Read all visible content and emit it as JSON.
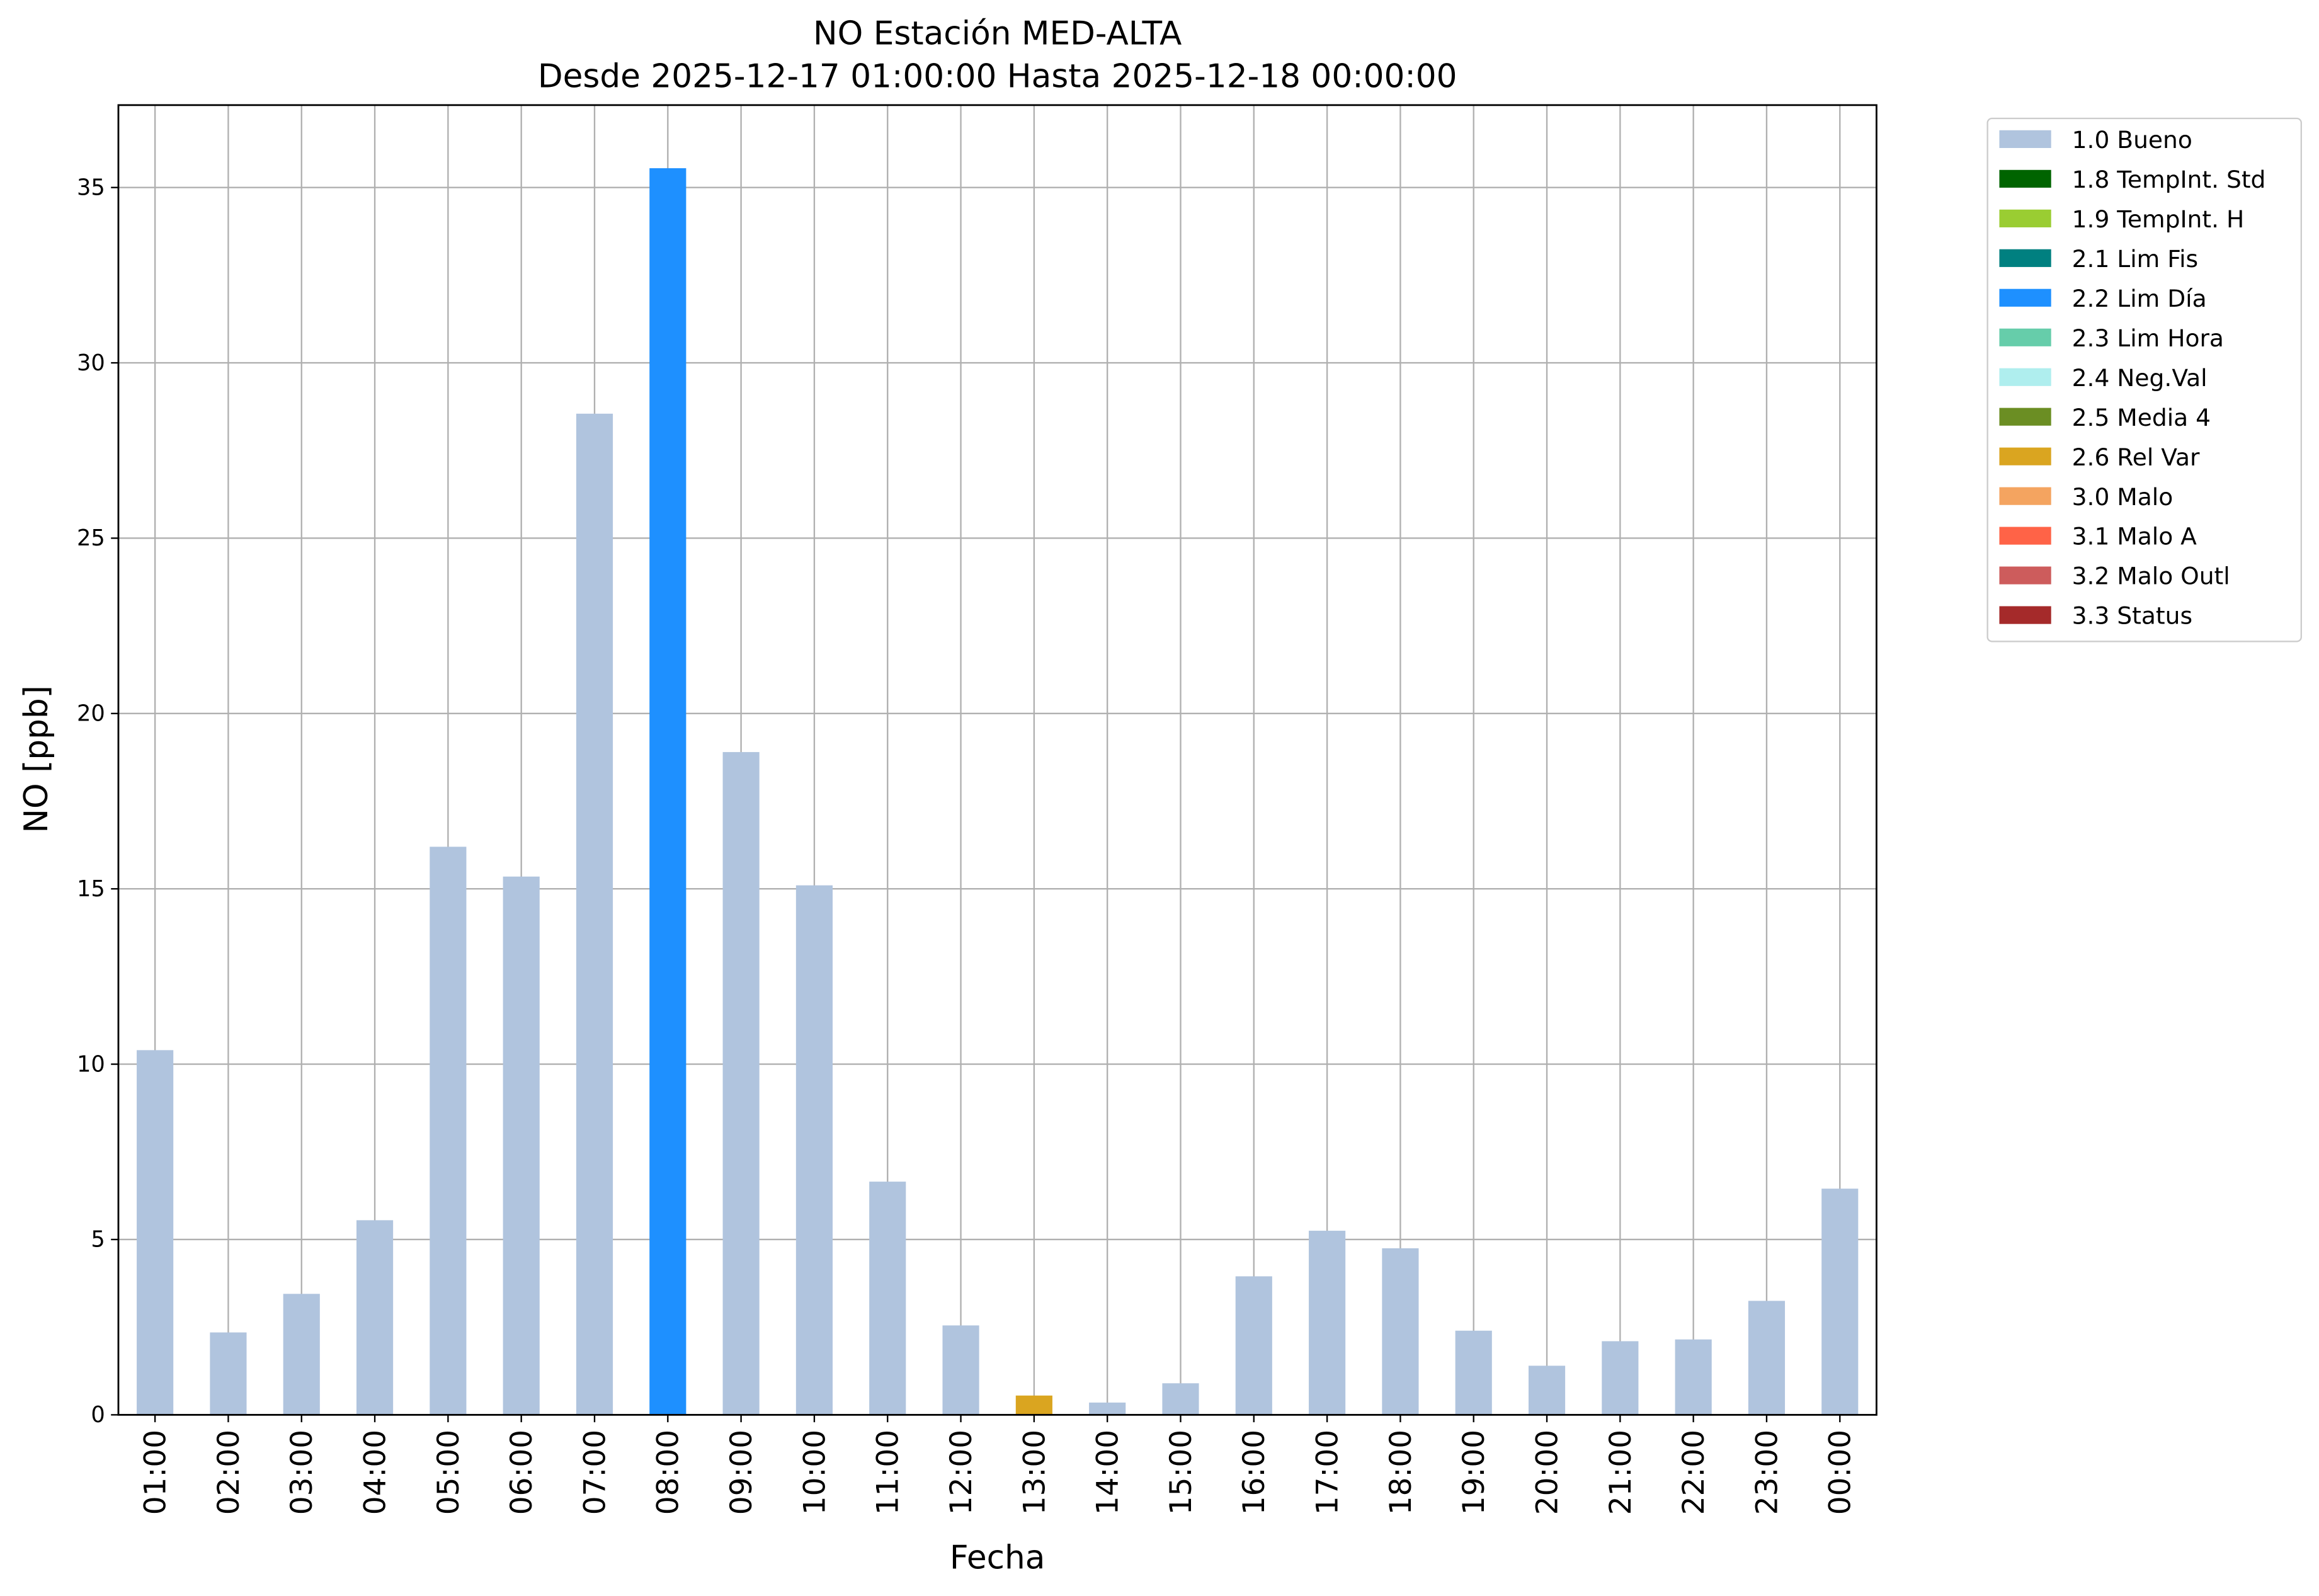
{
  "chart_data": {
    "type": "stacked-bar",
    "title": "NO Estación MED-ALTA",
    "subtitle": "Desde 2025-12-17 01:00:00 Hasta 2025-12-18 00:00:00",
    "x_label": "Fecha",
    "y_label": "NO [ppb]",
    "categories": [
      "01:00",
      "02:00",
      "03:00",
      "04:00",
      "05:00",
      "06:00",
      "07:00",
      "08:00",
      "09:00",
      "10:00",
      "11:00",
      "12:00",
      "13:00",
      "14:00",
      "15:00",
      "16:00",
      "17:00",
      "18:00",
      "19:00",
      "20:00",
      "21:00",
      "22:00",
      "23:00",
      "00:00"
    ],
    "series": [
      {
        "name": "1.0 Bueno",
        "color": "#b0c4de",
        "values": [
          10.4,
          2.35,
          3.45,
          5.55,
          16.2,
          15.35,
          28.55,
          null,
          18.9,
          15.1,
          6.65,
          2.55,
          null,
          0.35,
          0.9,
          3.95,
          5.25,
          4.75,
          2.4,
          1.4,
          2.1,
          2.15,
          3.25,
          6.45
        ]
      },
      {
        "name": "1.8 TempInt. Std",
        "color": "#006400",
        "values": [
          null,
          null,
          null,
          null,
          null,
          null,
          null,
          null,
          null,
          null,
          null,
          null,
          null,
          null,
          null,
          null,
          null,
          null,
          null,
          null,
          null,
          null,
          null,
          null
        ]
      },
      {
        "name": "1.9 TempInt. H",
        "color": "#9acd32",
        "values": [
          null,
          null,
          null,
          null,
          null,
          null,
          null,
          null,
          null,
          null,
          null,
          null,
          null,
          null,
          null,
          null,
          null,
          null,
          null,
          null,
          null,
          null,
          null,
          null
        ]
      },
      {
        "name": "2.1 Lim Fis",
        "color": "#008080",
        "values": [
          null,
          null,
          null,
          null,
          null,
          null,
          null,
          null,
          null,
          null,
          null,
          null,
          null,
          null,
          null,
          null,
          null,
          null,
          null,
          null,
          null,
          null,
          null,
          null
        ]
      },
      {
        "name": "2.2 Lim Día",
        "color": "#1e90ff",
        "values": [
          null,
          null,
          null,
          null,
          null,
          null,
          null,
          35.55,
          null,
          null,
          null,
          null,
          null,
          null,
          null,
          null,
          null,
          null,
          null,
          null,
          null,
          null,
          null,
          null
        ]
      },
      {
        "name": "2.3 Lim Hora",
        "color": "#66cdaa",
        "values": [
          null,
          null,
          null,
          null,
          null,
          null,
          null,
          null,
          null,
          null,
          null,
          null,
          null,
          null,
          null,
          null,
          null,
          null,
          null,
          null,
          null,
          null,
          null,
          null
        ]
      },
      {
        "name": "2.4 Neg.Val",
        "color": "#afeeee",
        "values": [
          null,
          null,
          null,
          null,
          null,
          null,
          null,
          null,
          null,
          null,
          null,
          null,
          null,
          null,
          null,
          null,
          null,
          null,
          null,
          null,
          null,
          null,
          null,
          null
        ]
      },
      {
        "name": "2.5 Media 4",
        "color": "#6b8e23",
        "values": [
          null,
          null,
          null,
          null,
          null,
          null,
          null,
          null,
          null,
          null,
          null,
          null,
          null,
          null,
          null,
          null,
          null,
          null,
          null,
          null,
          null,
          null,
          null,
          null
        ]
      },
      {
        "name": "2.6 Rel Var",
        "color": "#daa520",
        "values": [
          null,
          null,
          null,
          null,
          null,
          null,
          null,
          null,
          null,
          null,
          null,
          null,
          0.55,
          null,
          null,
          null,
          null,
          null,
          null,
          null,
          null,
          null,
          null,
          null
        ]
      },
      {
        "name": "3.0 Malo",
        "color": "#f4a460",
        "values": [
          null,
          null,
          null,
          null,
          null,
          null,
          null,
          null,
          null,
          null,
          null,
          null,
          null,
          null,
          null,
          null,
          null,
          null,
          null,
          null,
          null,
          null,
          null,
          null
        ]
      },
      {
        "name": "3.1 Malo A",
        "color": "#ff6347",
        "values": [
          null,
          null,
          null,
          null,
          null,
          null,
          null,
          null,
          null,
          null,
          null,
          null,
          null,
          null,
          null,
          null,
          null,
          null,
          null,
          null,
          null,
          null,
          null,
          null
        ]
      },
      {
        "name": "3.2 Malo Outl",
        "color": "#cd5c5c",
        "values": [
          null,
          null,
          null,
          null,
          null,
          null,
          null,
          null,
          null,
          null,
          null,
          null,
          null,
          null,
          null,
          null,
          null,
          null,
          null,
          null,
          null,
          null,
          null,
          null
        ]
      },
      {
        "name": "3.3 Status",
        "color": "#a52a2a",
        "values": [
          null,
          null,
          null,
          null,
          null,
          null,
          null,
          null,
          null,
          null,
          null,
          null,
          null,
          null,
          null,
          null,
          null,
          null,
          null,
          null,
          null,
          null,
          null,
          null
        ]
      }
    ],
    "ylim": [
      0,
      37.35
    ],
    "yticks": [
      0,
      5,
      10,
      15,
      20,
      25,
      30,
      35
    ],
    "grid": true,
    "legend": "outside-right"
  }
}
